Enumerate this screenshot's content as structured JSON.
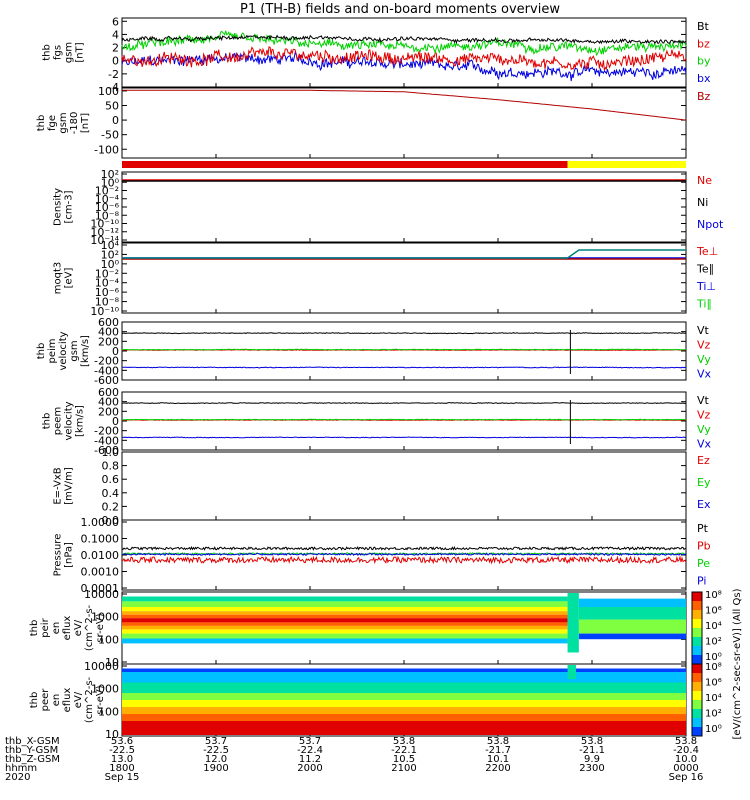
{
  "title": "P1 (TH-B) fields and on-board moments overview",
  "colors": {
    "black": "#000000",
    "red": "#e00000",
    "green": "#00d000",
    "blue": "#0000e0",
    "darkred": "#b00000",
    "yellow": "#ffff00",
    "teal": "#008080"
  },
  "panels": [
    {
      "id": "fgs-gsm",
      "ylabel_lines": [
        "thb",
        "fgs",
        "gsm",
        "[nT]"
      ],
      "ylim": [
        -4,
        6.5
      ],
      "ticks": [
        "6",
        "4",
        "2",
        "0",
        "-2",
        "-4"
      ],
      "tick_values": [
        6,
        4,
        2,
        0,
        -2,
        -4
      ],
      "legend": [
        {
          "name": "Bt",
          "color": "#000000"
        },
        {
          "name": "bz",
          "color": "#e00000"
        },
        {
          "name": "by",
          "color": "#00d000"
        },
        {
          "name": "bx",
          "color": "#0000e0"
        }
      ]
    },
    {
      "id": "fge-gsm-bz",
      "ylabel_lines": [
        "thb",
        "fge",
        "gsm",
        "-180",
        "[nT]"
      ],
      "ylim": [
        -130,
        110
      ],
      "ticks": [
        "100",
        "50",
        "0",
        "-50",
        "-100"
      ],
      "tick_values": [
        100,
        50,
        0,
        -50,
        -100
      ],
      "legend": [
        {
          "name": "Bz",
          "color": "#b00000"
        }
      ]
    },
    {
      "id": "density",
      "ylabel_lines": [
        "Density",
        "[cm-3]"
      ],
      "ticks": [
        "10²",
        "10⁰",
        "10⁻²",
        "10⁻⁴",
        "10⁻⁶",
        "10⁻⁸",
        "10⁻¹⁰",
        "10⁻¹²",
        "10⁻¹⁴"
      ],
      "legend": [
        {
          "name": "Ne",
          "color": "#e00000"
        },
        {
          "name": "Ni",
          "color": "#000000"
        },
        {
          "name": "Npot",
          "color": "#0000e0"
        }
      ]
    },
    {
      "id": "moqt3",
      "ylabel_lines": [
        "moqt3",
        "[eV]"
      ],
      "ticks": [
        "10⁴",
        "10²",
        "10⁰",
        "10⁻²",
        "10⁻⁴",
        "10⁻⁶",
        "10⁻⁸",
        "10⁻¹⁰"
      ],
      "legend": [
        {
          "name": "Te⊥",
          "color": "#e00000"
        },
        {
          "name": "Te∥",
          "color": "#000000"
        },
        {
          "name": "Ti⊥",
          "color": "#0000e0"
        },
        {
          "name": "Ti∥",
          "color": "#00d000"
        }
      ]
    },
    {
      "id": "peim-velocity",
      "ylabel_lines": [
        "thb",
        "peim",
        "velocity",
        "gsm",
        "[km/s]"
      ],
      "ylim": [
        -600,
        600
      ],
      "ticks": [
        "600",
        "400",
        "200",
        "0",
        "-200",
        "-400",
        "-600"
      ],
      "tick_values": [
        600,
        400,
        200,
        0,
        -200,
        -400,
        -600
      ],
      "legend": [
        {
          "name": "Vt",
          "color": "#000000"
        },
        {
          "name": "Vz",
          "color": "#e00000"
        },
        {
          "name": "Vy",
          "color": "#00d000"
        },
        {
          "name": "Vx",
          "color": "#0000e0"
        }
      ]
    },
    {
      "id": "peem-velocity",
      "ylabel_lines": [
        "thb",
        "peem",
        "velocity",
        "[km/s]"
      ],
      "ylim": [
        -600,
        600
      ],
      "ticks": [
        "600",
        "400",
        "200",
        "0",
        "-200",
        "-400",
        "-600"
      ],
      "tick_values": [
        600,
        400,
        200,
        0,
        -200,
        -400,
        -600
      ],
      "legend": [
        {
          "name": "Vt",
          "color": "#000000"
        },
        {
          "name": "Vz",
          "color": "#e00000"
        },
        {
          "name": "Vy",
          "color": "#00d000"
        },
        {
          "name": "Vx",
          "color": "#0000e0"
        }
      ]
    },
    {
      "id": "efield",
      "ylabel_lines": [
        "E=-VxB",
        "[mV/m]"
      ],
      "ylim": [
        0,
        1
      ],
      "ticks": [
        "1.0",
        "0.8",
        "0.6",
        "0.4",
        "0.2",
        "0.0"
      ],
      "tick_values": [
        1.0,
        0.8,
        0.6,
        0.4,
        0.2,
        0.0
      ],
      "legend": [
        {
          "name": "Ez",
          "color": "#e00000"
        },
        {
          "name": "Ey",
          "color": "#00d000"
        },
        {
          "name": "Ex",
          "color": "#0000e0"
        }
      ]
    },
    {
      "id": "pressure",
      "ylabel_lines": [
        "Pressure",
        "[nPa]"
      ],
      "ticks": [
        "1.0000",
        "0.1000",
        "0.0100",
        "0.0010",
        "0.0001"
      ],
      "legend": [
        {
          "name": "Pt",
          "color": "#000000"
        },
        {
          "name": "Pb",
          "color": "#e00000"
        },
        {
          "name": "Pe",
          "color": "#00d000"
        },
        {
          "name": "Pi",
          "color": "#0000e0"
        }
      ]
    },
    {
      "id": "peir-spectrogram",
      "ylabel_lines": [
        "thb",
        "peir",
        "en",
        "eflux",
        "eV/",
        "(cm^2-s-",
        "sr-eV)"
      ],
      "ticks": [
        "10000",
        "1000",
        "100",
        "10"
      ]
    },
    {
      "id": "peer-spectrogram",
      "ylabel_lines": [
        "thb",
        "peer",
        "en",
        "eflux",
        "eV/",
        "(cm^2-s-",
        "sr-eV)"
      ],
      "ticks": [
        "10000",
        "1000",
        "100",
        "10"
      ]
    }
  ],
  "colorbar": {
    "ticks": [
      "10⁸",
      "10⁶",
      "10⁴",
      "10²",
      "10⁰"
    ],
    "label": "[eV/(cm^2-sec-sr-eV)] (All Qs)",
    "label2": "[eV/(cm^2-sec-sr-eV)]"
  },
  "bottom_axis": {
    "row_labels": [
      "thb_X-GSM",
      "thb_Y-GSM",
      "thb_Z-GSM",
      "hhmm",
      "2020"
    ],
    "columns": [
      {
        "x": "53.6",
        "xgsm": "-22.5",
        "ygsm": "13.0",
        "hhmm": "1800",
        "date": "Sep 15"
      },
      {
        "x": "53.7",
        "xgsm": "-22.5",
        "ygsm": "12.0",
        "hhmm": "1900",
        "date": ""
      },
      {
        "x": "53.7",
        "xgsm": "-22.4",
        "ygsm": "11.2",
        "hhmm": "2000",
        "date": ""
      },
      {
        "x": "53.8",
        "xgsm": "-22.1",
        "ygsm": "10.5",
        "hhmm": "2100",
        "date": ""
      },
      {
        "x": "53.8",
        "xgsm": "-21.7",
        "ygsm": "10.1",
        "hhmm": "2200",
        "date": ""
      },
      {
        "x": "53.8",
        "xgsm": "-21.1",
        "ygsm": "9.9",
        "hhmm": "2300",
        "date": ""
      },
      {
        "x": "53.8",
        "xgsm": "-20.4",
        "ygsm": "10.0",
        "hhmm": "0000",
        "date": "Sep 16"
      }
    ]
  },
  "chart_data": {
    "type": "line",
    "title": "P1 (TH-B) fields and on-board moments overview",
    "x_label": "hhmm",
    "x": [
      "1800",
      "1900",
      "2000",
      "2100",
      "2200",
      "2300",
      "0000"
    ],
    "series": [
      {
        "name": "Bt",
        "values": [
          3.2,
          3.4,
          3.6,
          3.3,
          3.1,
          3.0,
          3.0
        ]
      },
      {
        "name": "bz",
        "values": [
          0.0,
          0.5,
          0.8,
          0.4,
          0.3,
          -0.5,
          1.0
        ]
      },
      {
        "name": "by",
        "values": [
          2.0,
          3.5,
          2.5,
          2.0,
          2.5,
          2.0,
          2.4
        ]
      },
      {
        "name": "bx",
        "values": [
          -0.5,
          0.5,
          0.0,
          -0.6,
          -1.5,
          -1.8,
          -1.6
        ]
      },
      {
        "name": "Bz",
        "values": [
          102,
          102,
          102,
          97,
          70,
          38,
          0
        ]
      },
      {
        "name": "Vt",
        "values": [
          370,
          370,
          370,
          370,
          370,
          370,
          370
        ]
      },
      {
        "name": "Vz",
        "values": [
          20,
          20,
          20,
          20,
          20,
          20,
          20
        ]
      },
      {
        "name": "Vy",
        "values": [
          30,
          30,
          30,
          30,
          30,
          30,
          30
        ]
      },
      {
        "name": "Vx",
        "values": [
          -340,
          -340,
          -340,
          -340,
          -340,
          -340,
          -340
        ]
      }
    ]
  }
}
